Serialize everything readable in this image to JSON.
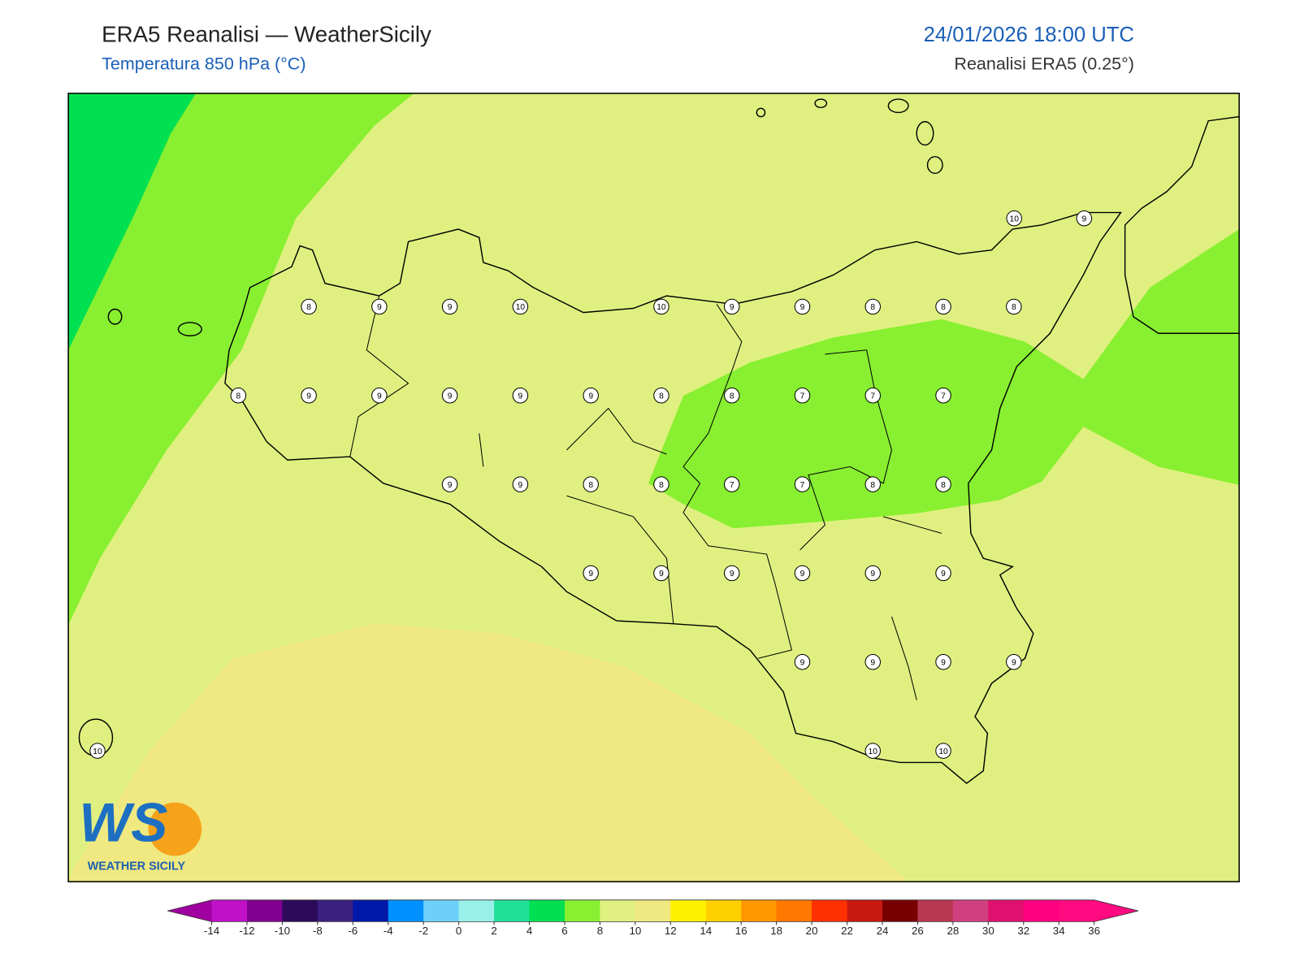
{
  "header": {
    "title": "ERA5 Reanalisi — WeatherSicily",
    "subtitle": "Temperatura 850 hPa (°C)",
    "datetime": "24/01/2026 18:00 UTC",
    "source": "Reanalisi ERA5 (0.25°)"
  },
  "points": {
    "values": [
      10,
      9,
      8,
      9,
      9,
      10,
      10,
      9,
      9,
      8,
      8,
      8,
      8,
      9,
      9,
      9,
      9,
      9,
      8,
      8,
      7,
      7,
      7,
      9,
      9,
      8,
      8,
      7,
      7,
      8,
      8,
      9,
      9,
      9,
      9,
      9,
      9,
      9,
      9,
      9,
      9,
      10,
      10,
      10
    ]
  },
  "colorbar": {
    "ticks": [
      -14,
      -12,
      -10,
      -8,
      -6,
      -4,
      -2,
      0,
      2,
      4,
      6,
      8,
      10,
      12,
      14,
      16,
      18,
      20,
      22,
      24,
      26,
      28,
      30,
      32,
      34,
      36
    ],
    "colors": [
      "#c010c8",
      "#800090",
      "#2d0a5a",
      "#3c2080",
      "#0018a8",
      "#0090ff",
      "#6cd0f8",
      "#98f0e8",
      "#20e098",
      "#00e050",
      "#88f030",
      "#e0f080",
      "#f0e880",
      "#fff000",
      "#ffd000",
      "#ff9800",
      "#ff7800",
      "#ff3000",
      "#c81810",
      "#780000",
      "#b83850",
      "#d04080",
      "#e01070",
      "#ff0080",
      "#ff0a80"
    ],
    "extend_colors": [
      "#a000a0",
      "#ff0a80"
    ]
  },
  "logo": {
    "mark": "WS",
    "text": "WEATHER SICILY"
  }
}
